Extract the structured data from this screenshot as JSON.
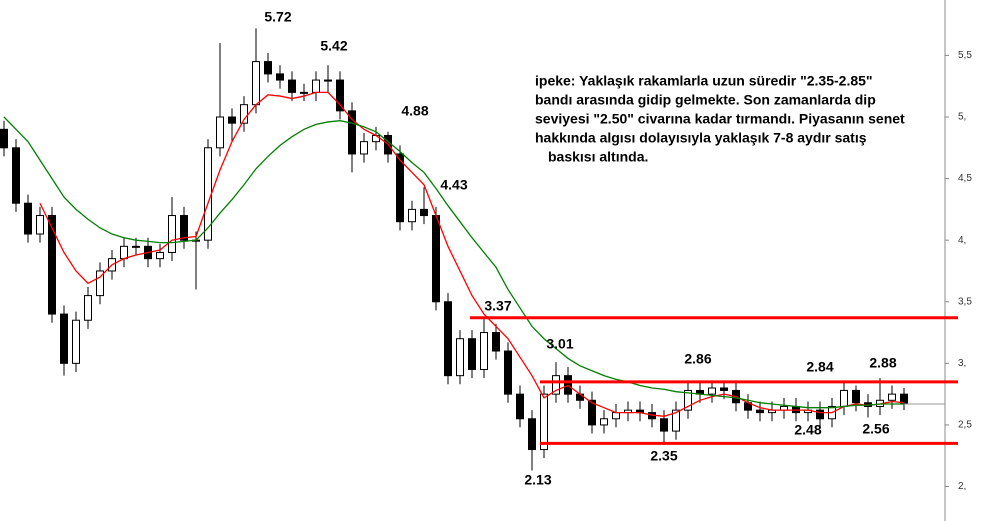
{
  "chart_data": {
    "type": "candlestick",
    "open": [
      4.9,
      4.75,
      4.3,
      4.05,
      4.2,
      3.4,
      3.0,
      3.35,
      3.55,
      3.75,
      3.85,
      3.95,
      3.95,
      3.85,
      3.9,
      4.2,
      4.0,
      4.0,
      4.75,
      5.0,
      4.95,
      5.1,
      5.45,
      5.35,
      5.3,
      5.2,
      5.2,
      5.3,
      5.3,
      5.05,
      4.7,
      4.8,
      4.85,
      4.7,
      4.15,
      4.25,
      4.2,
      3.5,
      2.9,
      3.2,
      2.95,
      3.25,
      3.1,
      2.75,
      2.55,
      2.3,
      2.75,
      2.9,
      2.75,
      2.7,
      2.5,
      2.55,
      2.6,
      2.62,
      2.6,
      2.55,
      2.45,
      2.62,
      2.78,
      2.75,
      2.8,
      2.78,
      2.68,
      2.62,
      2.6,
      2.62,
      2.65,
      2.6,
      2.62,
      2.55,
      2.65,
      2.78,
      2.68,
      2.65,
      2.7,
      2.75
    ],
    "high": [
      4.97,
      4.82,
      4.37,
      4.27,
      4.27,
      3.47,
      3.42,
      3.62,
      3.82,
      3.92,
      4.02,
      4.02,
      4.02,
      3.97,
      4.35,
      4.27,
      4.07,
      4.82,
      5.6,
      5.07,
      5.17,
      5.72,
      5.52,
      5.42,
      5.37,
      5.27,
      5.37,
      5.42,
      5.37,
      5.12,
      4.87,
      4.92,
      4.88,
      4.77,
      4.32,
      4.43,
      4.27,
      3.57,
      3.27,
      3.27,
      3.37,
      3.32,
      3.17,
      2.82,
      2.62,
      2.82,
      3.01,
      2.97,
      2.82,
      2.77,
      2.62,
      2.67,
      2.69,
      2.69,
      2.67,
      2.62,
      2.69,
      2.85,
      2.85,
      2.85,
      2.86,
      2.85,
      2.75,
      2.69,
      2.69,
      2.72,
      2.72,
      2.69,
      2.69,
      2.72,
      2.84,
      2.82,
      2.75,
      2.88,
      2.82,
      2.8
    ],
    "low": [
      4.68,
      4.23,
      3.98,
      3.98,
      3.33,
      2.9,
      2.93,
      3.28,
      3.48,
      3.68,
      3.78,
      3.88,
      3.78,
      3.78,
      3.83,
      3.93,
      3.6,
      3.93,
      4.68,
      4.8,
      4.88,
      5.03,
      5.28,
      5.23,
      5.13,
      5.13,
      5.13,
      5.2,
      4.98,
      4.55,
      4.63,
      4.73,
      4.63,
      4.08,
      4.08,
      4.13,
      3.43,
      2.83,
      2.83,
      2.88,
      2.88,
      3.03,
      2.68,
      2.48,
      2.13,
      2.23,
      2.68,
      2.68,
      2.63,
      2.43,
      2.43,
      2.48,
      2.53,
      2.53,
      2.48,
      2.35,
      2.38,
      2.55,
      2.68,
      2.68,
      2.71,
      2.61,
      2.55,
      2.53,
      2.53,
      2.55,
      2.53,
      2.53,
      2.48,
      2.48,
      2.58,
      2.61,
      2.56,
      2.58,
      2.63,
      2.62
    ],
    "close": [
      4.75,
      4.3,
      4.05,
      4.2,
      3.4,
      3.0,
      3.35,
      3.55,
      3.75,
      3.85,
      3.95,
      3.95,
      3.85,
      3.9,
      4.2,
      4.0,
      4.0,
      4.75,
      5.0,
      4.95,
      5.1,
      5.45,
      5.35,
      5.3,
      5.2,
      5.2,
      5.3,
      5.3,
      5.05,
      4.7,
      4.8,
      4.85,
      4.7,
      4.15,
      4.25,
      4.2,
      3.5,
      2.9,
      3.2,
      2.95,
      3.25,
      3.1,
      2.75,
      2.55,
      2.3,
      2.75,
      2.9,
      2.75,
      2.7,
      2.5,
      2.55,
      2.6,
      2.62,
      2.6,
      2.55,
      2.45,
      2.62,
      2.78,
      2.75,
      2.8,
      2.78,
      2.68,
      2.62,
      2.6,
      2.62,
      2.65,
      2.6,
      2.62,
      2.55,
      2.65,
      2.78,
      2.68,
      2.65,
      2.7,
      2.75,
      2.67
    ],
    "up_color": "#ffffff",
    "down_color": "#000000",
    "lines": [
      {
        "color": "#ff0000",
        "values": [
          null,
          null,
          null,
          4.3,
          4.1,
          3.9,
          3.75,
          3.65,
          3.7,
          3.8,
          3.85,
          3.88,
          3.9,
          3.92,
          4.0,
          4.02,
          4.03,
          4.3,
          4.57,
          4.8,
          4.98,
          5.1,
          5.18,
          5.17,
          5.15,
          5.17,
          5.2,
          5.2,
          5.1,
          4.98,
          4.9,
          4.85,
          4.78,
          4.65,
          4.55,
          4.45,
          4.2,
          3.95,
          3.75,
          3.55,
          3.4,
          3.3,
          3.2,
          3.05,
          2.9,
          2.72,
          2.78,
          2.82,
          2.75,
          2.68,
          2.64,
          2.6,
          2.6,
          2.6,
          2.58,
          2.57,
          2.6,
          2.65,
          2.7,
          2.73,
          2.75,
          2.73,
          2.68,
          2.64,
          2.62,
          2.62,
          2.62,
          2.62,
          2.6,
          2.6,
          2.65,
          2.67,
          2.66,
          2.67,
          2.69,
          2.68
        ]
      },
      {
        "color": "#008000",
        "values": [
          5.0,
          4.9,
          4.8,
          4.65,
          4.5,
          4.35,
          4.25,
          4.17,
          4.1,
          4.05,
          4.02,
          4.0,
          3.99,
          3.98,
          3.98,
          3.99,
          4.0,
          4.1,
          4.22,
          4.33,
          4.45,
          4.58,
          4.68,
          4.77,
          4.84,
          4.9,
          4.94,
          4.96,
          4.97,
          4.95,
          4.92,
          4.88,
          4.8,
          4.72,
          4.63,
          4.55,
          4.42,
          4.28,
          4.15,
          4.02,
          3.9,
          3.78,
          3.6,
          3.45,
          3.3,
          3.2,
          3.12,
          3.04,
          2.98,
          2.94,
          2.9,
          2.87,
          2.85,
          2.82,
          2.8,
          2.79,
          2.77,
          2.76,
          2.75,
          2.74,
          2.73,
          2.72,
          2.7,
          2.68,
          2.67,
          2.66,
          2.65,
          2.64,
          2.64,
          2.64,
          2.65,
          2.66,
          2.66,
          2.67,
          2.67,
          2.67
        ]
      }
    ],
    "levels": [
      3.37,
      2.85,
      2.35
    ],
    "level_color": "#ff0000",
    "last_price": 2.67,
    "annotations": [
      "5.72",
      "5.42",
      "4.88",
      "4.43",
      "3.37",
      "3.01",
      "2.86",
      "2.84",
      "2.88",
      "2.13",
      "2.35",
      "2.48",
      "2.56"
    ],
    "ylim": [
      1.72,
      5.95
    ],
    "yticks": [
      {
        "value": 2,
        "label": "2,"
      },
      {
        "value": 2.5,
        "label": "2,5"
      },
      {
        "value": 3,
        "label": "3,"
      },
      {
        "value": 3.5,
        "label": "3,5"
      },
      {
        "value": 4,
        "label": "4,"
      },
      {
        "value": 4.5,
        "label": "4,5"
      },
      {
        "value": 5,
        "label": "5,"
      },
      {
        "value": 5.5,
        "label": "5,5"
      }
    ],
    "note": [
      "ipeke: Yaklaşık rakamlarla uzun süredir \"2.35-2.85\"",
      "bandı arasında gidip gelmekte. Son zamanlarda dip",
      "seviyesi \"2.50\" civarına kadar tırmandı. Piyasanın senet",
      "hakkında  algısı dolayısıyla yaklaşık 7-8 aydır satış",
      "baskısı altında."
    ]
  }
}
